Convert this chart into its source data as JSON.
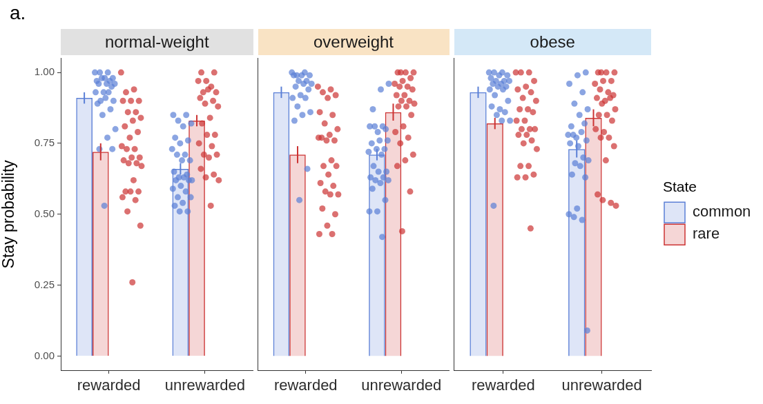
{
  "chart_data": [
    {
      "type": "bar",
      "title": "normal-weight",
      "ylabel": "Stay probability",
      "annotations": [
        "a."
      ],
      "categories": [
        "rewarded",
        "unrewarded"
      ],
      "ylim": [
        -0.05,
        1.05
      ],
      "yticks": [
        {
          "value": 0,
          "label": "0.00"
        },
        {
          "value": 0.25,
          "label": "0.25"
        },
        {
          "value": 0.5,
          "label": "0.50"
        },
        {
          "value": 0.75,
          "label": "0.75"
        },
        {
          "value": 1,
          "label": "1.00"
        }
      ],
      "marker": "circle",
      "series": [
        {
          "color": "#5a7fd6",
          "values": [
            0.91,
            0.66
          ],
          "errors": [
            0.02,
            0.02
          ]
        },
        {
          "color": "#cc3333",
          "values": [
            0.72,
            0.83
          ],
          "errors": [
            0.03,
            0.02
          ]
        },
        {
          "type": "scatter",
          "color": "#5a7fd6",
          "x": [
            "rewarded",
            "rewarded",
            "rewarded",
            "rewarded",
            "rewarded",
            "rewarded",
            "rewarded",
            "rewarded",
            "rewarded",
            "rewarded",
            "rewarded",
            "rewarded",
            "rewarded",
            "rewarded",
            "rewarded",
            "rewarded",
            "rewarded",
            "rewarded",
            "rewarded",
            "rewarded",
            "rewarded",
            "rewarded",
            "rewarded",
            "rewarded",
            "rewarded",
            "rewarded",
            "unrewarded",
            "unrewarded",
            "unrewarded",
            "unrewarded",
            "unrewarded",
            "unrewarded",
            "unrewarded",
            "unrewarded",
            "unrewarded",
            "unrewarded",
            "unrewarded",
            "unrewarded",
            "unrewarded",
            "unrewarded",
            "unrewarded",
            "unrewarded",
            "unrewarded",
            "unrewarded",
            "unrewarded",
            "unrewarded",
            "unrewarded",
            "unrewarded",
            "unrewarded",
            "unrewarded",
            "unrewarded",
            "unrewarded",
            "unrewarded",
            "unrewarded",
            "unrewarded"
          ],
          "values": [
            1,
            1,
            1,
            0.98,
            0.98,
            0.97,
            0.97,
            0.98,
            0.96,
            0.96,
            0.96,
            0.95,
            0.93,
            0.93,
            0.93,
            0.9,
            0.9,
            0.91,
            0.89,
            0.87,
            0.85,
            0.8,
            0.77,
            0.73,
            0.73,
            0.53,
            0.85,
            0.85,
            0.83,
            0.82,
            0.81,
            0.77,
            0.76,
            0.75,
            0.73,
            0.71,
            0.71,
            0.69,
            0.69,
            0.65,
            0.64,
            0.63,
            0.62,
            0.63,
            0.62,
            0.62,
            0.6,
            0.59,
            0.58,
            0.56,
            0.56,
            0.54,
            0.53,
            0.51,
            0.51
          ]
        },
        {
          "type": "scatter",
          "color": "#cc3333",
          "x": [
            "rewarded",
            "rewarded",
            "rewarded",
            "rewarded",
            "rewarded",
            "rewarded",
            "rewarded",
            "rewarded",
            "rewarded",
            "rewarded",
            "rewarded",
            "rewarded",
            "rewarded",
            "rewarded",
            "rewarded",
            "rewarded",
            "rewarded",
            "rewarded",
            "rewarded",
            "rewarded",
            "rewarded",
            "rewarded",
            "rewarded",
            "rewarded",
            "rewarded",
            "rewarded",
            "rewarded",
            "rewarded",
            "rewarded",
            "rewarded",
            "rewarded",
            "unrewarded",
            "unrewarded",
            "unrewarded",
            "unrewarded",
            "unrewarded",
            "unrewarded",
            "unrewarded",
            "unrewarded",
            "unrewarded",
            "unrewarded",
            "unrewarded",
            "unrewarded",
            "unrewarded",
            "unrewarded",
            "unrewarded",
            "unrewarded",
            "unrewarded",
            "unrewarded",
            "unrewarded",
            "unrewarded",
            "unrewarded",
            "unrewarded",
            "unrewarded",
            "unrewarded",
            "unrewarded",
            "unrewarded"
          ],
          "values": [
            1,
            0.94,
            0.93,
            0.9,
            0.9,
            0.9,
            0.86,
            0.86,
            0.84,
            0.83,
            0.81,
            0.79,
            0.77,
            0.74,
            0.73,
            0.73,
            0.7,
            0.7,
            0.69,
            0.68,
            0.68,
            0.67,
            0.62,
            0.58,
            0.58,
            0.58,
            0.56,
            0.55,
            0.51,
            0.46,
            0.26,
            1,
            1,
            0.97,
            0.97,
            0.95,
            0.93,
            0.93,
            0.94,
            0.91,
            0.9,
            0.89,
            0.88,
            0.84,
            0.82,
            0.78,
            0.78,
            0.75,
            0.74,
            0.71,
            0.71,
            0.7,
            0.66,
            0.64,
            0.63,
            0.62,
            0.53
          ]
        }
      ]
    },
    {
      "type": "bar",
      "title": "overweight",
      "categories": [
        "rewarded",
        "unrewarded"
      ],
      "ylim": [
        -0.05,
        1.05
      ],
      "tick_labels": "x",
      "marker": "circle",
      "series": [
        {
          "color": "#5a7fd6",
          "values": [
            0.93,
            0.71
          ],
          "errors": [
            0.02,
            0.02
          ]
        },
        {
          "color": "#cc3333",
          "values": [
            0.71,
            0.86
          ],
          "errors": [
            0.03,
            0.03
          ]
        },
        {
          "type": "scatter",
          "color": "#5a7fd6",
          "x": [
            "rewarded",
            "rewarded",
            "rewarded",
            "rewarded",
            "rewarded",
            "rewarded",
            "rewarded",
            "rewarded",
            "rewarded",
            "rewarded",
            "rewarded",
            "rewarded",
            "rewarded",
            "rewarded",
            "rewarded",
            "rewarded",
            "rewarded",
            "rewarded",
            "rewarded",
            "rewarded",
            "rewarded",
            "unrewarded",
            "unrewarded",
            "unrewarded",
            "unrewarded",
            "unrewarded",
            "unrewarded",
            "unrewarded",
            "unrewarded",
            "unrewarded",
            "unrewarded",
            "unrewarded",
            "unrewarded",
            "unrewarded",
            "unrewarded",
            "unrewarded",
            "unrewarded",
            "unrewarded",
            "unrewarded",
            "unrewarded",
            "unrewarded",
            "unrewarded",
            "unrewarded",
            "unrewarded",
            "unrewarded",
            "unrewarded",
            "unrewarded",
            "unrewarded",
            "unrewarded"
          ],
          "values": [
            1,
            1,
            0.99,
            0.99,
            0.99,
            0.99,
            0.97,
            0.97,
            0.96,
            0.96,
            0.95,
            0.94,
            0.92,
            0.91,
            0.91,
            0.88,
            0.86,
            0.85,
            0.83,
            0.66,
            0.55,
            0.96,
            0.94,
            0.87,
            0.8,
            0.79,
            0.81,
            0.81,
            0.81,
            0.76,
            0.76,
            0.75,
            0.73,
            0.73,
            0.72,
            0.71,
            0.67,
            0.65,
            0.65,
            0.63,
            0.63,
            0.62,
            0.62,
            0.61,
            0.59,
            0.55,
            0.51,
            0.51,
            0.42
          ]
        },
        {
          "type": "scatter",
          "color": "#cc3333",
          "x": [
            "rewarded",
            "rewarded",
            "rewarded",
            "rewarded",
            "rewarded",
            "rewarded",
            "rewarded",
            "rewarded",
            "rewarded",
            "rewarded",
            "rewarded",
            "rewarded",
            "rewarded",
            "rewarded",
            "rewarded",
            "rewarded",
            "rewarded",
            "rewarded",
            "rewarded",
            "rewarded",
            "rewarded",
            "rewarded",
            "rewarded",
            "rewarded",
            "rewarded",
            "rewarded",
            "rewarded",
            "rewarded",
            "unrewarded",
            "unrewarded",
            "unrewarded",
            "unrewarded",
            "unrewarded",
            "unrewarded",
            "unrewarded",
            "unrewarded",
            "unrewarded",
            "unrewarded",
            "unrewarded",
            "unrewarded",
            "unrewarded",
            "unrewarded",
            "unrewarded",
            "unrewarded",
            "unrewarded",
            "unrewarded",
            "unrewarded",
            "unrewarded",
            "unrewarded",
            "unrewarded",
            "unrewarded",
            "unrewarded",
            "unrewarded",
            "unrewarded",
            "unrewarded"
          ],
          "values": [
            0.95,
            0.94,
            0.93,
            0.92,
            0.91,
            0.86,
            0.85,
            0.82,
            0.8,
            0.78,
            0.77,
            0.76,
            0.76,
            0.77,
            0.69,
            0.67,
            0.67,
            0.64,
            0.61,
            0.6,
            0.58,
            0.57,
            0.57,
            0.52,
            0.5,
            0.46,
            0.43,
            0.43,
            1,
            1,
            1,
            1,
            0.98,
            0.97,
            0.96,
            0.95,
            0.95,
            0.94,
            0.92,
            0.92,
            0.9,
            0.9,
            0.89,
            0.88,
            0.88,
            0.85,
            0.81,
            0.79,
            0.77,
            0.75,
            0.71,
            0.69,
            0.67,
            0.58,
            0.44
          ]
        }
      ]
    },
    {
      "type": "bar",
      "title": "obese",
      "categories": [
        "rewarded",
        "unrewarded"
      ],
      "ylim": [
        -0.05,
        1.05
      ],
      "tick_labels": "x",
      "marker": "circle",
      "legend": "right",
      "legend_title": "State",
      "series": [
        {
          "name": "common",
          "color": "#5a7fd6",
          "values": [
            0.93,
            0.73
          ],
          "errors": [
            0.02,
            0.03
          ]
        },
        {
          "name": "rare",
          "color": "#cc3333",
          "values": [
            0.82,
            0.84
          ],
          "errors": [
            0.02,
            0.03
          ]
        },
        {
          "type": "scatter",
          "color": "#5a7fd6",
          "x": [
            "rewarded",
            "rewarded",
            "rewarded",
            "rewarded",
            "rewarded",
            "rewarded",
            "rewarded",
            "rewarded",
            "rewarded",
            "rewarded",
            "rewarded",
            "rewarded",
            "rewarded",
            "rewarded",
            "rewarded",
            "rewarded",
            "rewarded",
            "rewarded",
            "rewarded",
            "rewarded",
            "rewarded",
            "rewarded",
            "rewarded",
            "rewarded",
            "unrewarded",
            "unrewarded",
            "unrewarded",
            "unrewarded",
            "unrewarded",
            "unrewarded",
            "unrewarded",
            "unrewarded",
            "unrewarded",
            "unrewarded",
            "unrewarded",
            "unrewarded",
            "unrewarded",
            "unrewarded",
            "unrewarded",
            "unrewarded",
            "unrewarded",
            "unrewarded",
            "unrewarded",
            "unrewarded",
            "unrewarded",
            "unrewarded",
            "unrewarded",
            "unrewarded",
            "unrewarded",
            "unrewarded",
            "unrewarded"
          ],
          "values": [
            1,
            1,
            1,
            0.99,
            0.99,
            0.98,
            0.97,
            0.97,
            0.97,
            0.96,
            0.96,
            0.95,
            0.95,
            0.94,
            0.94,
            0.92,
            0.9,
            0.87,
            0.88,
            0.86,
            0.85,
            0.83,
            0.83,
            0.53,
            1,
            0.99,
            0.96,
            0.93,
            0.89,
            0.87,
            0.85,
            0.81,
            0.82,
            0.77,
            0.78,
            0.79,
            0.78,
            0.76,
            0.74,
            0.75,
            0.7,
            0.68,
            0.69,
            0.67,
            0.64,
            0.63,
            0.52,
            0.5,
            0.48,
            0.49,
            0.09
          ]
        },
        {
          "type": "scatter",
          "color": "#cc3333",
          "x": [
            "rewarded",
            "rewarded",
            "rewarded",
            "rewarded",
            "rewarded",
            "rewarded",
            "rewarded",
            "rewarded",
            "rewarded",
            "rewarded",
            "rewarded",
            "rewarded",
            "rewarded",
            "rewarded",
            "rewarded",
            "rewarded",
            "rewarded",
            "rewarded",
            "rewarded",
            "rewarded",
            "rewarded",
            "rewarded",
            "rewarded",
            "rewarded",
            "rewarded",
            "rewarded",
            "rewarded",
            "rewarded",
            "unrewarded",
            "unrewarded",
            "unrewarded",
            "unrewarded",
            "unrewarded",
            "unrewarded",
            "unrewarded",
            "unrewarded",
            "unrewarded",
            "unrewarded",
            "unrewarded",
            "unrewarded",
            "unrewarded",
            "unrewarded",
            "unrewarded",
            "unrewarded",
            "unrewarded",
            "unrewarded",
            "unrewarded",
            "unrewarded",
            "unrewarded",
            "unrewarded",
            "unrewarded",
            "unrewarded",
            "unrewarded",
            "unrewarded",
            "unrewarded",
            "unrewarded"
          ],
          "values": [
            1,
            1,
            1,
            0.97,
            0.95,
            0.94,
            0.93,
            0.91,
            0.9,
            0.87,
            0.87,
            0.86,
            0.83,
            0.83,
            0.8,
            0.8,
            0.8,
            0.78,
            0.78,
            0.76,
            0.75,
            0.73,
            0.67,
            0.67,
            0.64,
            0.63,
            0.63,
            0.45,
            1,
            1,
            1,
            1,
            0.97,
            0.97,
            0.96,
            0.93,
            0.94,
            0.92,
            0.9,
            0.91,
            0.91,
            0.89,
            0.87,
            0.85,
            0.85,
            0.83,
            0.79,
            0.8,
            0.77,
            0.77,
            0.74,
            0.69,
            0.57,
            0.54,
            0.55,
            0.53
          ]
        }
      ]
    }
  ]
}
